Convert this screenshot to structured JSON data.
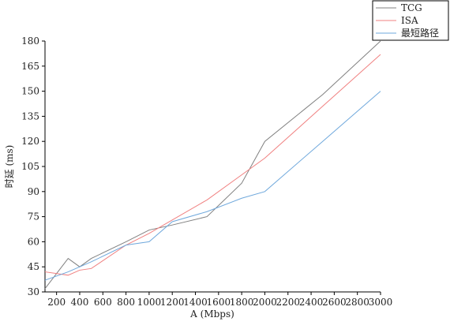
{
  "chart_data": {
    "type": "line",
    "xlabel": "A (Mbps)",
    "ylabel": "时延 (ms)",
    "x": [
      100,
      300,
      400,
      500,
      800,
      1000,
      1200,
      1500,
      1800,
      2000,
      2500,
      3000
    ],
    "series": [
      {
        "name": "TCG",
        "color": "#808080",
        "values": [
          32,
          50,
          45,
          50,
          60,
          67,
          70,
          75,
          95,
          120,
          148,
          180
        ]
      },
      {
        "name": "ISA",
        "color": "#f08080",
        "values": [
          42,
          40,
          43,
          44,
          58,
          65,
          73,
          85,
          100,
          110,
          141,
          172
        ]
      },
      {
        "name": "最短路径",
        "color": "#6fa8dc",
        "values": [
          37,
          42,
          45,
          48,
          58,
          60,
          72,
          78,
          86,
          90,
          120,
          150
        ]
      }
    ],
    "xlim": [
      100,
      3000
    ],
    "xticks": [
      200,
      400,
      600,
      800,
      1000,
      1200,
      1400,
      1600,
      1800,
      2000,
      2200,
      2400,
      2600,
      2800,
      3000
    ],
    "ylim": [
      30,
      180
    ],
    "yticks": [
      30,
      45,
      60,
      75,
      90,
      105,
      120,
      135,
      150,
      165,
      180
    ],
    "legend": "top-right"
  }
}
